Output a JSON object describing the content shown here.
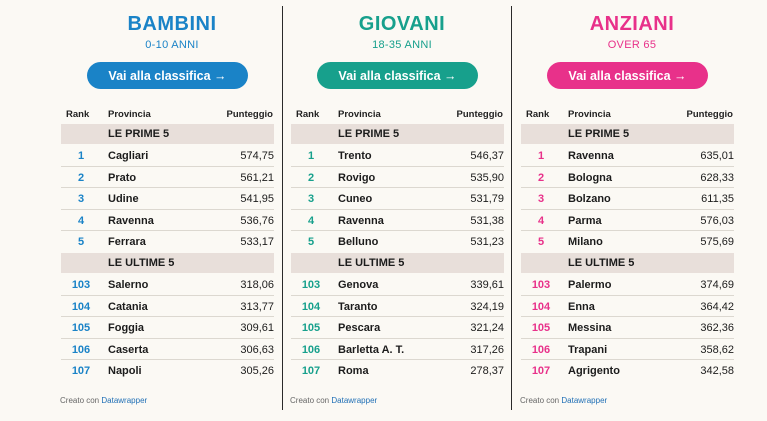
{
  "columns": [
    {
      "title": "BAMBINI",
      "subtitle": "0-10 ANNI",
      "button_label": "Vai alla classifica →",
      "accent": "#1a83c7",
      "header": {
        "rank": "Rank",
        "province": "Provincia",
        "score": "Punteggio"
      },
      "top_label": "LE PRIME 5",
      "top": [
        {
          "rank": "1",
          "province": "Cagliari",
          "score": "574,75"
        },
        {
          "rank": "2",
          "province": "Prato",
          "score": "561,21"
        },
        {
          "rank": "3",
          "province": "Udine",
          "score": "541,95"
        },
        {
          "rank": "4",
          "province": "Ravenna",
          "score": "536,76"
        },
        {
          "rank": "5",
          "province": "Ferrara",
          "score": "533,17"
        }
      ],
      "bottom_label": "LE ULTIME 5",
      "bottom": [
        {
          "rank": "103",
          "province": "Salerno",
          "score": "318,06"
        },
        {
          "rank": "104",
          "province": "Catania",
          "score": "313,77"
        },
        {
          "rank": "105",
          "province": "Foggia",
          "score": "309,61"
        },
        {
          "rank": "106",
          "province": "Caserta",
          "score": "306,63"
        },
        {
          "rank": "107",
          "province": "Napoli",
          "score": "305,26"
        }
      ],
      "credit_prefix": "Creato con",
      "credit_link": "Datawrapper"
    },
    {
      "title": "GIOVANI",
      "subtitle": "18-35 ANNI",
      "button_label": "Vai alla classifica →",
      "accent": "#17a08c",
      "header": {
        "rank": "Rank",
        "province": "Provincia",
        "score": "Punteggio"
      },
      "top_label": "LE PRIME 5",
      "top": [
        {
          "rank": "1",
          "province": "Trento",
          "score": "546,37"
        },
        {
          "rank": "2",
          "province": "Rovigo",
          "score": "535,90"
        },
        {
          "rank": "3",
          "province": "Cuneo",
          "score": "531,79"
        },
        {
          "rank": "4",
          "province": "Ravenna",
          "score": "531,38"
        },
        {
          "rank": "5",
          "province": "Belluno",
          "score": "531,23"
        }
      ],
      "bottom_label": "LE ULTIME 5",
      "bottom": [
        {
          "rank": "103",
          "province": "Genova",
          "score": "339,61"
        },
        {
          "rank": "104",
          "province": "Taranto",
          "score": "324,19"
        },
        {
          "rank": "105",
          "province": "Pescara",
          "score": "321,24"
        },
        {
          "rank": "106",
          "province": "Barletta A. T.",
          "score": "317,26"
        },
        {
          "rank": "107",
          "province": "Roma",
          "score": "278,37"
        }
      ],
      "credit_prefix": "Creato con",
      "credit_link": "Datawrapper"
    },
    {
      "title": "ANZIANI",
      "subtitle": "OVER 65",
      "button_label": "Vai alla classifica →",
      "accent": "#e8318a",
      "header": {
        "rank": "Rank",
        "province": "Provincia",
        "score": "Punteggio"
      },
      "top_label": "LE PRIME 5",
      "top": [
        {
          "rank": "1",
          "province": "Ravenna",
          "score": "635,01"
        },
        {
          "rank": "2",
          "province": "Bologna",
          "score": "628,33"
        },
        {
          "rank": "3",
          "province": "Bolzano",
          "score": "611,35"
        },
        {
          "rank": "4",
          "province": "Parma",
          "score": "576,03"
        },
        {
          "rank": "5",
          "province": "Milano",
          "score": "575,69"
        }
      ],
      "bottom_label": "LE ULTIME 5",
      "bottom": [
        {
          "rank": "103",
          "province": "Palermo",
          "score": "374,69"
        },
        {
          "rank": "104",
          "province": "Enna",
          "score": "364,42"
        },
        {
          "rank": "105",
          "province": "Messina",
          "score": "362,36"
        },
        {
          "rank": "106",
          "province": "Trapani",
          "score": "358,62"
        },
        {
          "rank": "107",
          "province": "Agrigento",
          "score": "342,58"
        }
      ],
      "credit_prefix": "Creato con",
      "credit_link": "Datawrapper"
    }
  ]
}
